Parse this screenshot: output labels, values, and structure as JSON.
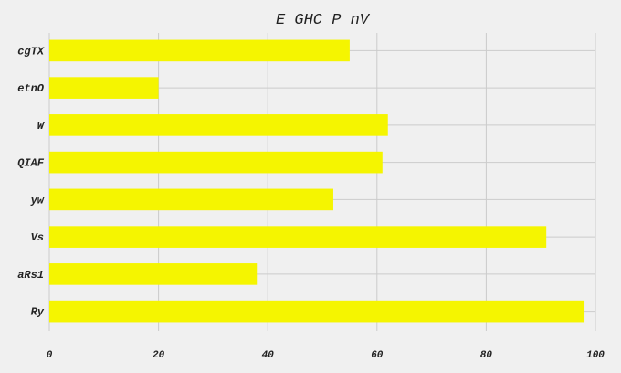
{
  "chart_data": {
    "type": "bar",
    "orientation": "horizontal",
    "title": "E GHC P nV",
    "xlabel": "",
    "ylabel": "",
    "categories": [
      "cgTX",
      "etnO",
      "W",
      "QIAF",
      "yw",
      "Vs",
      "aRs1",
      "Ry"
    ],
    "values": [
      55,
      20,
      62,
      61,
      52,
      91,
      38,
      98
    ],
    "xlim": [
      0,
      100
    ],
    "xticks": [
      "0",
      "20",
      "40",
      "60",
      "80",
      "100"
    ],
    "grid": true,
    "legend": "none"
  },
  "colors": {
    "background": "#f0f0f0",
    "bar": "#f5f500",
    "grid": "#cbcbcb",
    "text": "#222222"
  }
}
